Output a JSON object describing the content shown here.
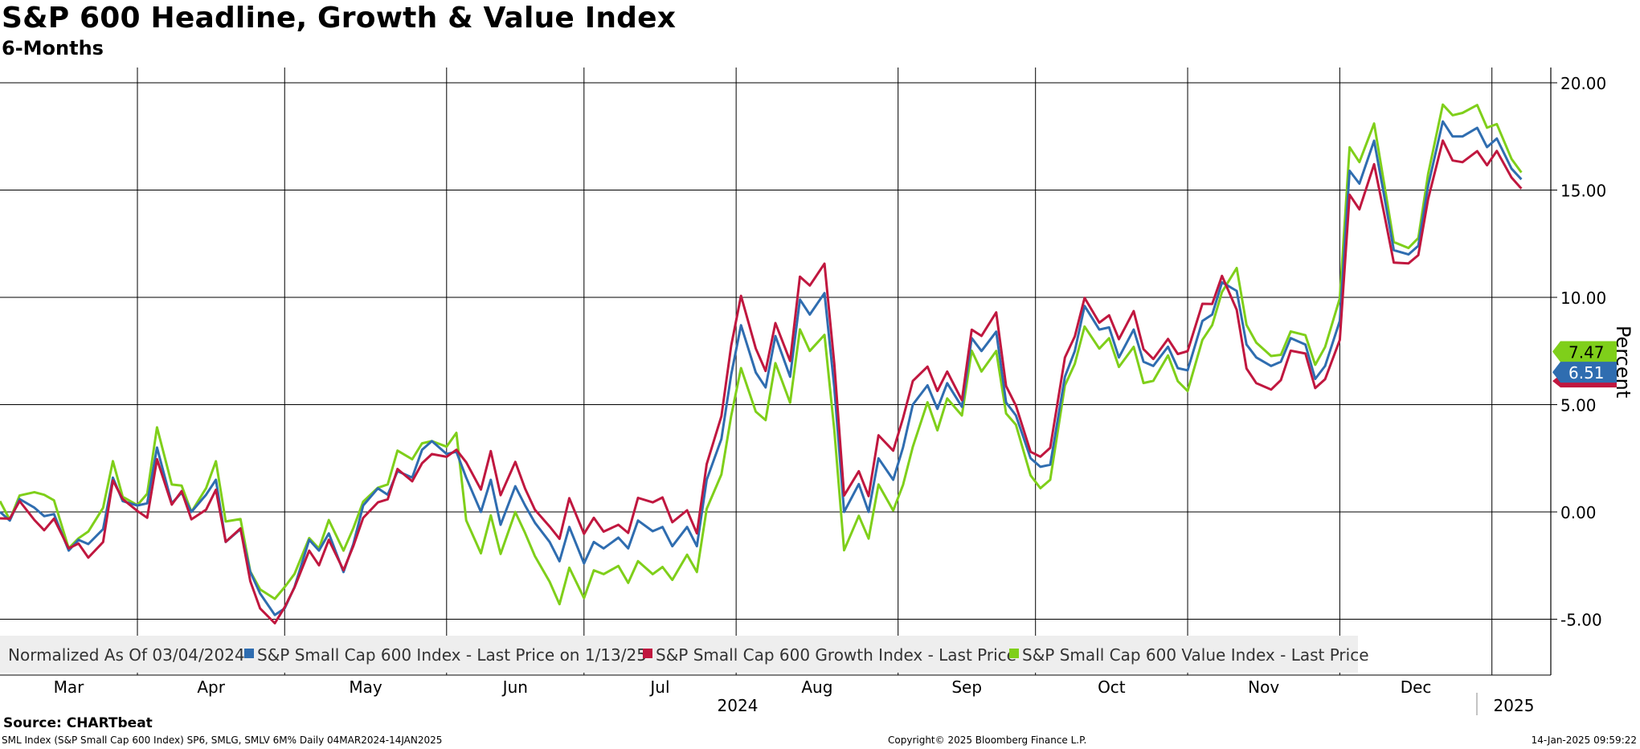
{
  "header": {
    "title": "S&P 600 Headline, Growth & Value Index",
    "subtitle": "6-Months"
  },
  "footer": {
    "source": "Source: CHARTbeat",
    "description": "SML Index (S&P Small Cap 600 Index) SP6, SMLG, SMLV 6M%  Daily 04MAR2024-14JAN2025",
    "copyright": "Copyright© 2025 Bloomberg Finance L.P.",
    "timestamp": "14-Jan-2025 09:59:22"
  },
  "colors": {
    "headline": "#2f6db0",
    "growth": "#c0173f",
    "value": "#7fcf1a",
    "grid": "#000000",
    "legend_bg": "#eeeeee"
  },
  "chart_data": {
    "type": "line",
    "ylabel": "Percent",
    "ylim": [
      -7.5,
      20.8
    ],
    "y_ticks": [
      "20.00",
      "15.00",
      "10.00",
      "5.00",
      "0.00",
      "-5.00"
    ],
    "y_tick_values": [
      20,
      15,
      10,
      5,
      0,
      -5
    ],
    "month_labels": [
      "Mar",
      "Apr",
      "May",
      "Jun",
      "Jul",
      "Aug",
      "Sep",
      "Oct",
      "Nov",
      "Dec"
    ],
    "year_labels": [
      "2024",
      "2025"
    ],
    "x_start": "2024-03-04",
    "x_end": "2025-01-14",
    "legend_items": [
      "Normalized As Of 03/04/2024",
      "S&P Small Cap 600 Index - Last Price on 1/13/25",
      "S&P Small Cap 600 Growth Index - Last Price",
      "S&P Small Cap 600 Value Index - Last Price"
    ],
    "last_value_labels": [
      "7.47",
      "6.51"
    ],
    "series": [
      {
        "name": "S&P Small Cap 600 Index",
        "color_key": "headline",
        "points": [
          [
            "2024-03-04",
            0.0
          ],
          [
            "2024-03-06",
            -0.4
          ],
          [
            "2024-03-08",
            0.6
          ],
          [
            "2024-03-11",
            0.2
          ],
          [
            "2024-03-13",
            -0.2
          ],
          [
            "2024-03-15",
            -0.1
          ],
          [
            "2024-03-18",
            -1.8
          ],
          [
            "2024-03-20",
            -1.3
          ],
          [
            "2024-03-22",
            -1.5
          ],
          [
            "2024-03-25",
            -0.8
          ],
          [
            "2024-03-27",
            1.6
          ],
          [
            "2024-03-29",
            0.5
          ],
          [
            "2024-04-01",
            0.3
          ],
          [
            "2024-04-03",
            0.4
          ],
          [
            "2024-04-05",
            3.0
          ],
          [
            "2024-04-08",
            0.4
          ],
          [
            "2024-04-10",
            0.9
          ],
          [
            "2024-04-12",
            0.0
          ],
          [
            "2024-04-15",
            0.8
          ],
          [
            "2024-04-17",
            1.5
          ],
          [
            "2024-04-19",
            -1.4
          ],
          [
            "2024-04-22",
            -0.8
          ],
          [
            "2024-04-24",
            -2.8
          ],
          [
            "2024-04-26",
            -3.8
          ],
          [
            "2024-04-29",
            -4.8
          ],
          [
            "2024-05-01",
            -4.5
          ],
          [
            "2024-05-03",
            -3.5
          ],
          [
            "2024-05-06",
            -1.3
          ],
          [
            "2024-05-08",
            -1.8
          ],
          [
            "2024-05-10",
            -1.0
          ],
          [
            "2024-05-13",
            -2.8
          ],
          [
            "2024-05-15",
            -1.5
          ],
          [
            "2024-05-17",
            0.3
          ],
          [
            "2024-05-20",
            1.1
          ],
          [
            "2024-05-22",
            0.8
          ],
          [
            "2024-05-24",
            1.9
          ],
          [
            "2024-05-27",
            1.6
          ],
          [
            "2024-05-29",
            2.9
          ],
          [
            "2024-05-31",
            3.3
          ],
          [
            "2024-06-03",
            2.7
          ],
          [
            "2024-06-05",
            2.8
          ],
          [
            "2024-06-07",
            1.6
          ],
          [
            "2024-06-10",
            0.0
          ],
          [
            "2024-06-12",
            1.5
          ],
          [
            "2024-06-14",
            -0.6
          ],
          [
            "2024-06-17",
            1.2
          ],
          [
            "2024-06-19",
            0.3
          ],
          [
            "2024-06-21",
            -0.5
          ],
          [
            "2024-06-24",
            -1.4
          ],
          [
            "2024-06-26",
            -2.3
          ],
          [
            "2024-06-28",
            -0.7
          ],
          [
            "2024-07-01",
            -2.4
          ],
          [
            "2024-07-03",
            -1.4
          ],
          [
            "2024-07-05",
            -1.7
          ],
          [
            "2024-07-08",
            -1.2
          ],
          [
            "2024-07-10",
            -1.7
          ],
          [
            "2024-07-12",
            -0.4
          ],
          [
            "2024-07-15",
            -0.9
          ],
          [
            "2024-07-17",
            -0.7
          ],
          [
            "2024-07-19",
            -1.6
          ],
          [
            "2024-07-22",
            -0.7
          ],
          [
            "2024-07-24",
            -1.6
          ],
          [
            "2024-07-26",
            1.5
          ],
          [
            "2024-07-29",
            3.4
          ],
          [
            "2024-07-31",
            6.4
          ],
          [
            "2024-08-02",
            8.7
          ],
          [
            "2024-08-05",
            6.5
          ],
          [
            "2024-08-07",
            5.8
          ],
          [
            "2024-08-09",
            8.2
          ],
          [
            "2024-08-12",
            6.3
          ],
          [
            "2024-08-14",
            9.9
          ],
          [
            "2024-08-16",
            9.2
          ],
          [
            "2024-08-19",
            10.2
          ],
          [
            "2024-08-21",
            5.8
          ],
          [
            "2024-08-23",
            0.0
          ],
          [
            "2024-08-26",
            1.3
          ],
          [
            "2024-08-28",
            0.0
          ],
          [
            "2024-08-30",
            2.5
          ],
          [
            "2024-09-02",
            1.5
          ],
          [
            "2024-09-04",
            3.0
          ],
          [
            "2024-09-06",
            5.0
          ],
          [
            "2024-09-09",
            5.9
          ],
          [
            "2024-09-11",
            4.8
          ],
          [
            "2024-09-13",
            6.0
          ],
          [
            "2024-09-16",
            4.9
          ],
          [
            "2024-09-18",
            8.1
          ],
          [
            "2024-09-20",
            7.5
          ],
          [
            "2024-09-23",
            8.4
          ],
          [
            "2024-09-25",
            5.1
          ],
          [
            "2024-09-27",
            4.5
          ],
          [
            "2024-09-30",
            2.5
          ],
          [
            "2024-10-02",
            2.1
          ],
          [
            "2024-10-04",
            2.2
          ],
          [
            "2024-10-07",
            6.3
          ],
          [
            "2024-10-09",
            7.5
          ],
          [
            "2024-10-11",
            9.6
          ],
          [
            "2024-10-14",
            8.5
          ],
          [
            "2024-10-16",
            8.6
          ],
          [
            "2024-10-18",
            7.2
          ],
          [
            "2024-10-21",
            8.5
          ],
          [
            "2024-10-23",
            7.0
          ],
          [
            "2024-10-25",
            6.8
          ],
          [
            "2024-10-28",
            7.7
          ],
          [
            "2024-10-30",
            6.7
          ],
          [
            "2024-11-01",
            6.6
          ],
          [
            "2024-11-04",
            8.9
          ],
          [
            "2024-11-06",
            9.2
          ],
          [
            "2024-11-08",
            10.7
          ],
          [
            "2024-11-11",
            10.3
          ],
          [
            "2024-11-13",
            7.8
          ],
          [
            "2024-11-15",
            7.2
          ],
          [
            "2024-11-18",
            6.8
          ],
          [
            "2024-11-20",
            7.0
          ],
          [
            "2024-11-22",
            8.1
          ],
          [
            "2024-11-25",
            7.8
          ],
          [
            "2024-11-27",
            6.2
          ],
          [
            "2024-11-29",
            6.8
          ],
          [
            "2024-12-02",
            8.9
          ],
          [
            "2024-12-04",
            15.9
          ],
          [
            "2024-12-06",
            15.3
          ],
          [
            "2024-12-09",
            17.3
          ],
          [
            "2024-12-11",
            14.8
          ],
          [
            "2024-12-13",
            12.2
          ],
          [
            "2024-12-16",
            12.0
          ],
          [
            "2024-12-18",
            12.4
          ],
          [
            "2024-12-20",
            15.2
          ],
          [
            "2024-12-23",
            18.2
          ],
          [
            "2024-12-25",
            17.5
          ],
          [
            "2024-12-27",
            17.5
          ],
          [
            "2024-12-30",
            17.9
          ],
          [
            "2025-01-01",
            17.0
          ],
          [
            "2025-01-03",
            17.4
          ],
          [
            "2025-01-06",
            16.0
          ],
          [
            "2025-01-08",
            15.5
          ]
        ]
      }
    ]
  }
}
